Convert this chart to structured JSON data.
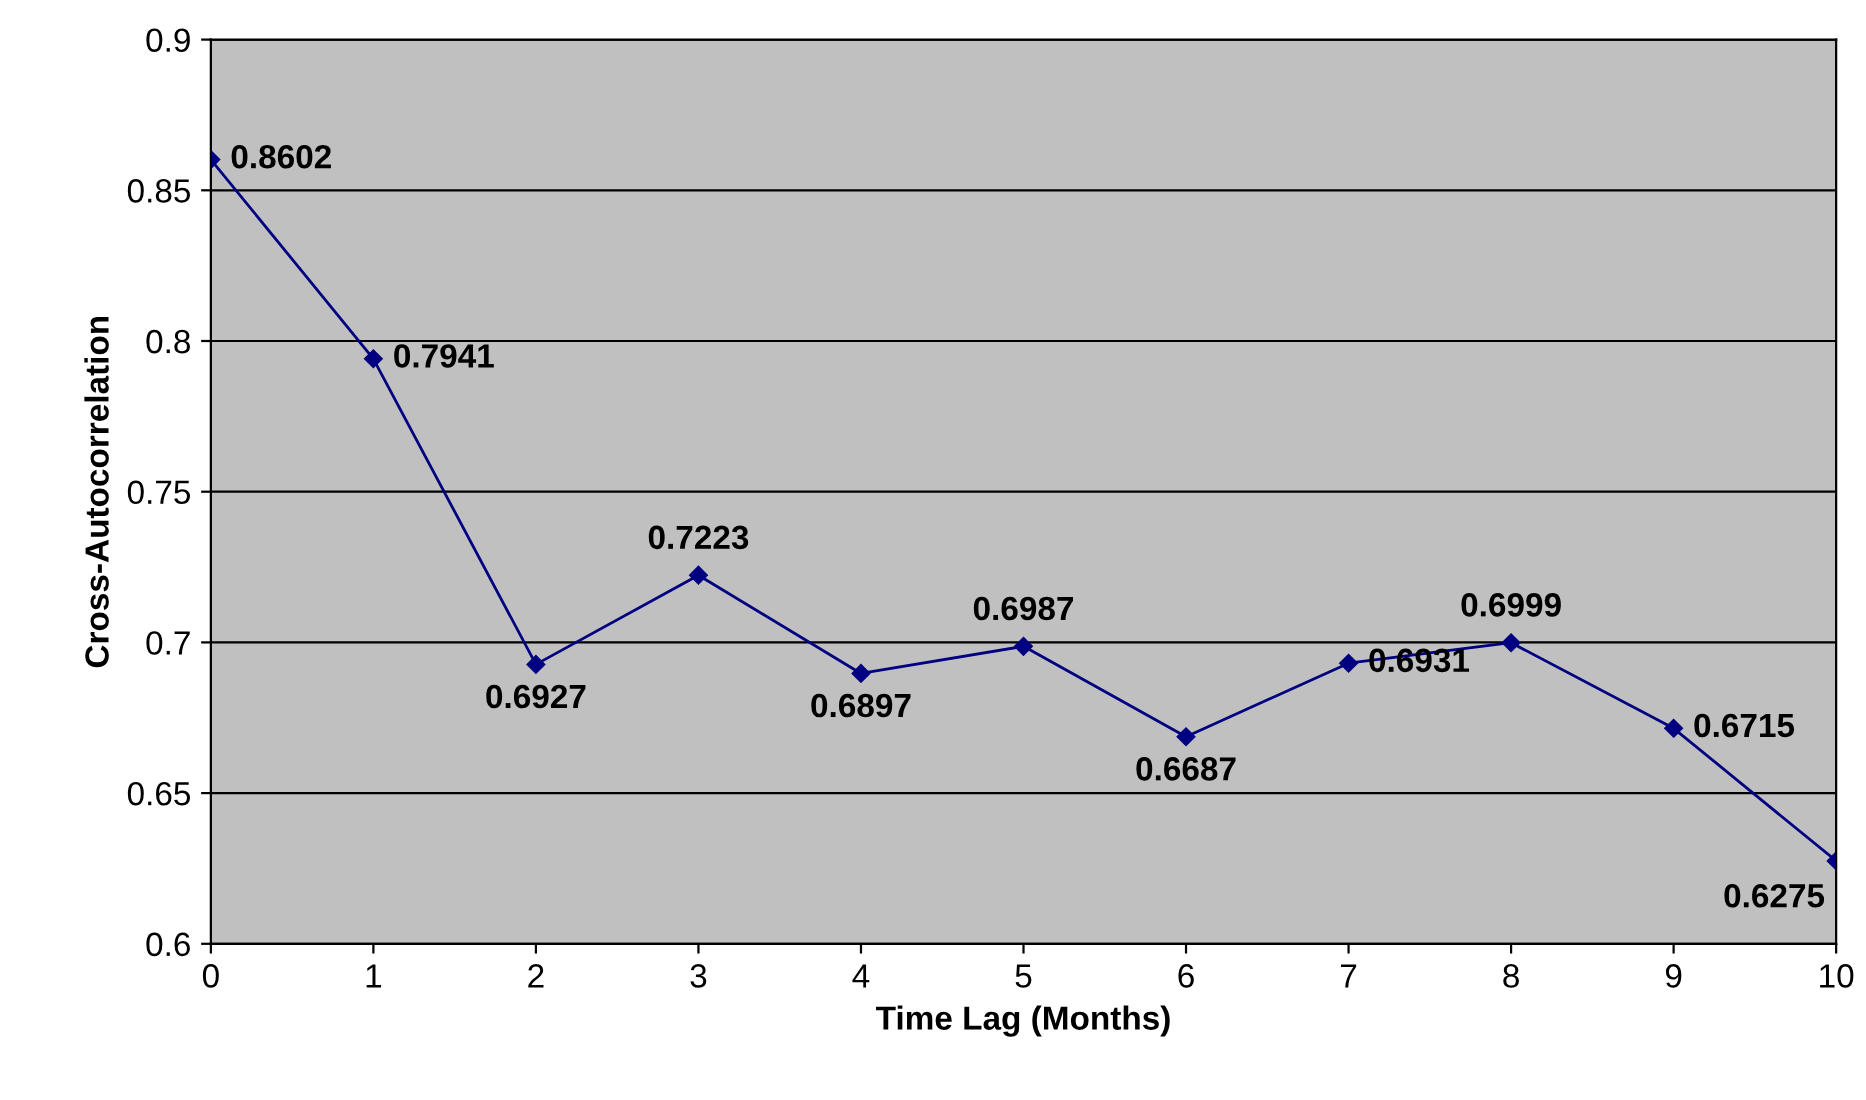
{
  "chart_data": {
    "type": "line",
    "xlabel": "Time Lag (Months)",
    "ylabel": "Cross-Autocorrelation",
    "x": [
      0,
      1,
      2,
      3,
      4,
      5,
      6,
      7,
      8,
      9,
      10
    ],
    "series": [
      {
        "color": "#000080",
        "values": [
          0.8602,
          0.7941,
          0.6927,
          0.7223,
          0.6897,
          0.6987,
          0.6687,
          0.6931,
          0.6999,
          0.6715,
          0.6275
        ]
      }
    ],
    "xlim": [
      0,
      10
    ],
    "xticks": [
      0,
      1,
      2,
      3,
      4,
      5,
      6,
      7,
      8,
      9,
      10
    ],
    "ylim": [
      0.6,
      0.9
    ],
    "yticks": [
      0.6,
      0.65,
      0.7,
      0.75,
      0.8,
      0.85,
      0.9
    ],
    "grid": "y",
    "marker": "diamond",
    "line_style": "solid",
    "data_labels": true,
    "legend": false
  }
}
